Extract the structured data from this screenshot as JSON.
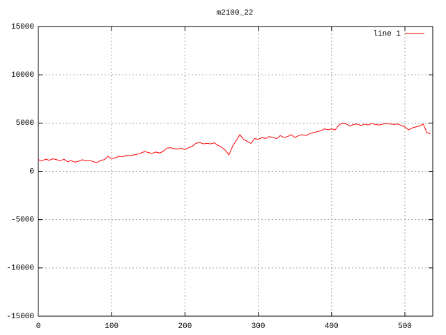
{
  "chart_data": {
    "type": "line",
    "title": "m2100_22",
    "x": [
      0,
      5,
      10,
      15,
      20,
      25,
      30,
      35,
      40,
      45,
      50,
      55,
      60,
      65,
      70,
      75,
      80,
      85,
      90,
      95,
      100,
      105,
      110,
      115,
      120,
      125,
      130,
      135,
      140,
      145,
      150,
      155,
      160,
      165,
      170,
      175,
      180,
      185,
      190,
      195,
      200,
      205,
      210,
      215,
      220,
      225,
      230,
      235,
      240,
      245,
      250,
      255,
      260,
      265,
      270,
      275,
      280,
      285,
      290,
      295,
      300,
      305,
      310,
      315,
      320,
      325,
      330,
      335,
      340,
      345,
      350,
      355,
      360,
      365,
      370,
      375,
      380,
      385,
      390,
      395,
      400,
      405,
      410,
      415,
      420,
      425,
      430,
      435,
      440,
      445,
      450,
      455,
      460,
      465,
      470,
      475,
      480,
      485,
      490,
      495,
      500,
      505,
      510,
      515,
      520,
      525,
      530,
      535
    ],
    "series": [
      {
        "name": "line 1",
        "color": "#ff0000",
        "values": [
          1200,
          1100,
          1250,
          1150,
          1300,
          1200,
          1100,
          1250,
          1000,
          1100,
          950,
          1050,
          1200,
          1100,
          1150,
          1000,
          900,
          1150,
          1200,
          1550,
          1300,
          1400,
          1550,
          1500,
          1650,
          1600,
          1700,
          1750,
          1900,
          2050,
          1950,
          1850,
          2000,
          1900,
          2050,
          2400,
          2450,
          2350,
          2300,
          2400,
          2250,
          2450,
          2600,
          2900,
          3000,
          2850,
          2900,
          2850,
          2950,
          2700,
          2500,
          2200,
          1700,
          2600,
          3200,
          3800,
          3300,
          3100,
          2900,
          3400,
          3300,
          3500,
          3400,
          3600,
          3500,
          3400,
          3700,
          3500,
          3600,
          3800,
          3500,
          3700,
          3800,
          3700,
          3900,
          4000,
          4100,
          4200,
          4400,
          4300,
          4400,
          4300,
          4800,
          5000,
          4900,
          4700,
          4850,
          4900,
          4750,
          4900,
          4800,
          4950,
          4850,
          4800,
          4900,
          4950,
          4900,
          4850,
          4900,
          4750,
          4600,
          4300,
          4500,
          4600,
          4700,
          4900,
          4000,
          3900
        ]
      }
    ],
    "xlim": [
      0,
      538
    ],
    "xticks": [
      0,
      100,
      200,
      300,
      400,
      500
    ],
    "ylim": [
      -15000,
      15000
    ],
    "yticks": [
      -15000,
      -10000,
      -5000,
      0,
      5000,
      10000,
      15000
    ],
    "grid": true,
    "legend": "top-right"
  }
}
